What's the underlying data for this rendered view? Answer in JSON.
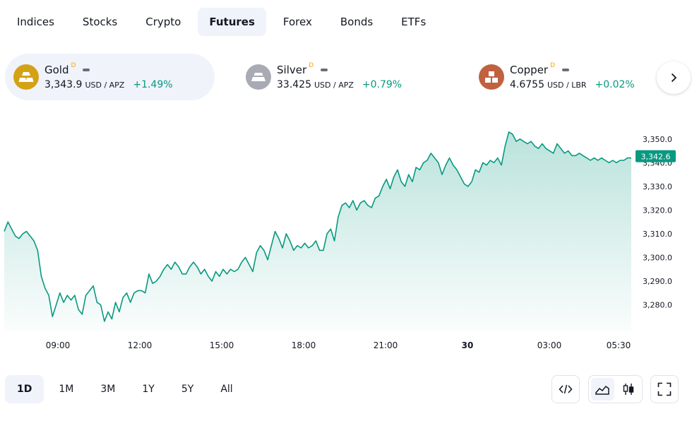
{
  "asset_tabs": [
    {
      "label": "Indices",
      "active": false
    },
    {
      "label": "Stocks",
      "active": false
    },
    {
      "label": "Crypto",
      "active": false
    },
    {
      "label": "Futures",
      "active": true
    },
    {
      "label": "Forex",
      "active": false
    },
    {
      "label": "Bonds",
      "active": false
    },
    {
      "label": "ETFs",
      "active": false
    }
  ],
  "tickers": [
    {
      "name": "Gold",
      "delay_mark": "D",
      "price": "3,343.9",
      "unit": "USD / APZ",
      "change": "+1.49%",
      "logo_color": "#d4a216",
      "icon": "gold-bars-icon",
      "active": true
    },
    {
      "name": "Silver",
      "delay_mark": "D",
      "price": "33.425",
      "unit": "USD / APZ",
      "change": "+0.79%",
      "logo_color": "#a9abb4",
      "icon": "silver-bars-icon",
      "active": false
    },
    {
      "name": "Copper",
      "delay_mark": "D",
      "price": "4.6755",
      "unit": "USD / LBR",
      "change": "+0.02%",
      "logo_color": "#c0623f",
      "icon": "copper-blocks-icon",
      "active": false
    }
  ],
  "colors": {
    "up": "#089981",
    "line": "#089981",
    "text": "#131722",
    "axis_text": "#131722",
    "fill_top": "#089981"
  },
  "chart_data": {
    "type": "area",
    "series": [
      {
        "values": [
          3311,
          3315,
          3312,
          3309,
          3308,
          3310,
          3311,
          3309,
          3307,
          3303,
          3292,
          3287,
          3284,
          3275,
          3280,
          3285,
          3281,
          3284,
          3282,
          3284,
          3278,
          3276,
          3284,
          3286,
          3288,
          3281,
          3280,
          3273,
          3277,
          3274,
          3281,
          3277,
          3283,
          3285,
          3281,
          3285,
          3286,
          3286,
          3285,
          3293,
          3289,
          3290,
          3292,
          3295,
          3297,
          3295,
          3298,
          3296,
          3293,
          3293,
          3296,
          3298,
          3296,
          3293,
          3295,
          3292,
          3290,
          3294,
          3292,
          3295,
          3293,
          3295,
          3294,
          3295,
          3298,
          3300,
          3297,
          3294,
          3302,
          3305,
          3303,
          3299,
          3305,
          3311,
          3308,
          3304,
          3310,
          3307,
          3303,
          3305,
          3304,
          3306,
          3304,
          3305,
          3307,
          3303,
          3303,
          3310,
          3312,
          3307,
          3317,
          3322,
          3323,
          3321,
          3324,
          3320,
          3323,
          3324,
          3322,
          3321,
          3325,
          3326,
          3330,
          3333,
          3329,
          3334,
          3337,
          3332,
          3330,
          3335,
          3332,
          3338,
          3337,
          3340,
          3341,
          3344,
          3342,
          3340,
          3335,
          3339,
          3342,
          3339,
          3337,
          3334,
          3331,
          3330,
          3332,
          3337,
          3336,
          3340,
          3339,
          3341,
          3340,
          3342,
          3339,
          3347,
          3353,
          3352,
          3349,
          3350,
          3349,
          3348,
          3349,
          3347,
          3346,
          3348,
          3346,
          3345,
          3344,
          3348,
          3346,
          3344,
          3345,
          3343,
          3343,
          3344,
          3343,
          3342,
          3341,
          3342,
          3341,
          3342,
          3341,
          3340,
          3341,
          3340,
          3341,
          3341,
          3342,
          3342
        ]
      }
    ],
    "x_ticks": [
      "09:00",
      "12:00",
      "15:00",
      "18:00",
      "21:00",
      "30",
      "03:00",
      "05:30"
    ],
    "y_ticks": [
      "3,350.0",
      "3,340.0",
      "3,330.0",
      "3,320.0",
      "3,310.0",
      "3,300.0",
      "3,290.0",
      "3,280.0"
    ],
    "ylim": [
      3270,
      3358
    ],
    "last_value_label": "3,342.6",
    "grid": false
  },
  "range_buttons": [
    {
      "label": "1D",
      "active": true
    },
    {
      "label": "1M",
      "active": false
    },
    {
      "label": "3M",
      "active": false
    },
    {
      "label": "1Y",
      "active": false
    },
    {
      "label": "5Y",
      "active": false
    },
    {
      "label": "All",
      "active": false
    }
  ],
  "toolbar": {
    "embed_icon": "code-embed-icon",
    "area_chart_icon": "area-chart-icon",
    "candles_icon": "candlestick-icon",
    "fullscreen_icon": "fullscreen-icon",
    "next_icon": "chevron-right-icon"
  }
}
